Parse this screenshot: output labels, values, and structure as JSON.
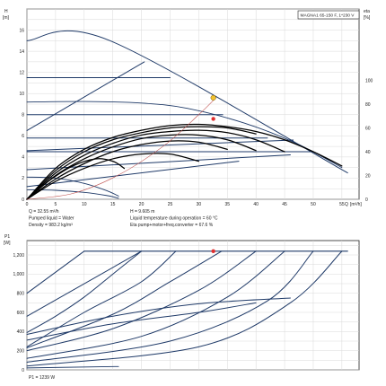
{
  "colors": {
    "grid": "#d9d9d9",
    "axis": "#222222",
    "blue": "#1f3a68",
    "black": "#000000",
    "system": "#c0504d",
    "op_marker": "#e03030",
    "head_marker": "#f2c230",
    "label_box": "#222222"
  },
  "chart_data": [
    {
      "type": "line",
      "chart_id": "head",
      "title": "MAGNA1 65-150 F, 1*230 V",
      "y_axis_label": "H",
      "y_axis_unit": "[m]",
      "y2_axis_label": "eta",
      "y2_axis_unit": "[%]",
      "x_axis_label": "Q",
      "x_axis_unit": "[m³/h]",
      "xlim": [
        0,
        58
      ],
      "ylim": [
        0,
        18
      ],
      "y2lim": [
        0,
        160
      ],
      "x_ticks": [
        0,
        5,
        10,
        15,
        20,
        25,
        30,
        35,
        40,
        45,
        50,
        55
      ],
      "y_ticks": [
        0,
        2,
        4,
        6,
        8,
        10,
        12,
        14,
        16
      ],
      "y2_ticks": [
        0,
        20,
        40,
        60,
        80,
        100
      ],
      "grid": true,
      "series": [
        {
          "group": "max",
          "points": [
            [
              0,
              15
            ],
            [
              14.5,
              15
            ],
            [
              56,
              2.5
            ]
          ]
        },
        {
          "group": "proportional",
          "points": [
            [
              0,
              6.5
            ],
            [
              20.5,
              13
            ]
          ]
        },
        {
          "group": "proportional",
          "points": [
            [
              0,
              4.6
            ],
            [
              46.5,
              5.6
            ]
          ]
        },
        {
          "group": "proportional",
          "points": [
            [
              0,
              2.8
            ],
            [
              46,
              4.2
            ]
          ]
        },
        {
          "group": "proportional",
          "points": [
            [
              0,
              1.2
            ],
            [
              37,
              3.6
            ]
          ]
        },
        {
          "group": "constant",
          "points": [
            [
              0,
              11.5
            ],
            [
              25,
              11.5
            ]
          ]
        },
        {
          "group": "constant",
          "points": [
            [
              0,
              8
            ],
            [
              34.2,
              8
            ]
          ]
        },
        {
          "group": "constant",
          "points": [
            [
              0,
              5.8
            ],
            [
              42,
              5.8
            ]
          ]
        },
        {
          "group": "constant",
          "points": [
            [
              0,
              4.5
            ],
            [
              50,
              4.5
            ]
          ]
        },
        {
          "group": "fixed",
          "points": [
            [
              0,
              0.9
            ],
            [
              5,
              0.85
            ],
            [
              10,
              0.65
            ],
            [
              14,
              0.35
            ],
            [
              16,
              0.1
            ]
          ]
        },
        {
          "group": "fixed",
          "points": [
            [
              0,
              2.1
            ],
            [
              5,
              2
            ],
            [
              10,
              1.5
            ],
            [
              14,
              0.8
            ],
            [
              16,
              0.3
            ]
          ]
        },
        {
          "group": "fixed",
          "points": [
            [
              0,
              9.2
            ],
            [
              10,
              9.25
            ],
            [
              20,
              9.1
            ],
            [
              28,
              8.6
            ],
            [
              38,
              7.2
            ],
            [
              47,
              5.3
            ],
            [
              55,
              3
            ]
          ]
        },
        {
          "group": "efficiency",
          "y_axis": "y2",
          "points": [
            [
              0,
              0
            ],
            [
              5,
              26
            ],
            [
              10,
              42
            ],
            [
              15,
              52
            ],
            [
              20,
              58
            ],
            [
              25,
              62
            ],
            [
              30,
              63
            ],
            [
              35,
              61
            ],
            [
              40,
              57
            ],
            [
              45,
              50
            ],
            [
              50,
              40
            ],
            [
              55,
              28
            ]
          ]
        },
        {
          "group": "efficiency",
          "y_axis": "y2",
          "points": [
            [
              0,
              0
            ],
            [
              5,
              24
            ],
            [
              10,
              40
            ],
            [
              15,
              50
            ],
            [
              20,
              56
            ],
            [
              25,
              60
            ],
            [
              30,
              61
            ],
            [
              35,
              60
            ],
            [
              40,
              55
            ]
          ]
        },
        {
          "group": "efficiency",
          "y_axis": "y2",
          "points": [
            [
              0,
              0
            ],
            [
              5,
              22
            ],
            [
              10,
              37
            ],
            [
              15,
              47
            ],
            [
              20,
              54
            ],
            [
              25,
              57
            ],
            [
              30,
              58
            ],
            [
              35,
              56
            ],
            [
              40,
              50
            ],
            [
              45,
              40
            ]
          ]
        },
        {
          "group": "efficiency",
          "y_axis": "y2",
          "points": [
            [
              0,
              0
            ],
            [
              5,
              20
            ],
            [
              10,
              34
            ],
            [
              15,
              44
            ],
            [
              20,
              51
            ],
            [
              25,
              54
            ],
            [
              30,
              54
            ],
            [
              35,
              50
            ],
            [
              40,
              41
            ]
          ]
        },
        {
          "group": "efficiency",
          "y_axis": "y2",
          "points": [
            [
              0,
              0
            ],
            [
              5,
              17
            ],
            [
              10,
              30
            ],
            [
              15,
              40
            ],
            [
              20,
              46
            ],
            [
              25,
              49
            ],
            [
              30,
              48
            ],
            [
              35,
              42
            ]
          ]
        },
        {
          "group": "efficiency",
          "y_axis": "y2",
          "points": [
            [
              0,
              0
            ],
            [
              5,
              15
            ],
            [
              10,
              26
            ],
            [
              15,
              34
            ],
            [
              20,
              38
            ],
            [
              25,
              38
            ],
            [
              30,
              32
            ]
          ]
        },
        {
          "group": "efficiency",
          "y_axis": "y2",
          "points": [
            [
              0,
              0
            ],
            [
              4,
              16
            ],
            [
              8,
              28
            ],
            [
              12,
              34
            ],
            [
              15,
              32
            ],
            [
              17,
              26
            ]
          ]
        },
        {
          "group": "system",
          "points": [
            [
              0,
              0
            ],
            [
              8,
              0.55
            ],
            [
              16,
              2.3
            ],
            [
              24,
              5.1
            ],
            [
              30,
              8
            ],
            [
              33,
              9.6
            ]
          ]
        }
      ],
      "markers": [
        {
          "name": "head-operating-point",
          "x": 32.55,
          "y": 9.605,
          "color_key": "head_marker"
        },
        {
          "name": "eta-operating-point",
          "x": 32.55,
          "y2": 67.6,
          "color_key": "op_marker"
        }
      ]
    },
    {
      "type": "line",
      "chart_id": "power",
      "y_axis_label": "P1",
      "y_axis_unit": "[W]",
      "xlim": [
        0,
        58
      ],
      "ylim": [
        0,
        1350
      ],
      "y_ticks": [
        0,
        200,
        400,
        600,
        800,
        1000,
        1200
      ],
      "y_tick_labels": [
        "0",
        "200",
        "400",
        "600",
        "800",
        "1,000",
        "1,200"
      ],
      "grid": true,
      "series": [
        {
          "group": "max",
          "points": [
            [
              10,
              1239
            ],
            [
              56,
              1239
            ]
          ]
        },
        {
          "group": "rising",
          "points": [
            [
              0,
              800
            ],
            [
              10,
              1239
            ]
          ]
        },
        {
          "group": "rising",
          "points": [
            [
              0,
              560
            ],
            [
              20,
              1239
            ]
          ]
        },
        {
          "group": "rising",
          "points": [
            [
              0,
              390
            ],
            [
              5,
              560
            ],
            [
              10,
              760
            ],
            [
              15,
              1000
            ],
            [
              20,
              1239
            ]
          ]
        },
        {
          "group": "rising",
          "points": [
            [
              0,
              240
            ],
            [
              10,
              600
            ],
            [
              20,
              920
            ],
            [
              26,
              1239
            ]
          ]
        },
        {
          "group": "rising",
          "points": [
            [
              0,
              230
            ],
            [
              15,
              580
            ],
            [
              25,
              920
            ],
            [
              34,
              1239
            ]
          ]
        },
        {
          "group": "rising",
          "points": [
            [
              0,
              200
            ],
            [
              15,
              430
            ],
            [
              30,
              830
            ],
            [
              40,
              1239
            ]
          ]
        },
        {
          "group": "rising",
          "points": [
            [
              0,
              120
            ],
            [
              20,
              350
            ],
            [
              35,
              760
            ],
            [
              45,
              1239
            ]
          ]
        },
        {
          "group": "rising",
          "points": [
            [
              0,
              80
            ],
            [
              25,
              300
            ],
            [
              42,
              720
            ],
            [
              50,
              1239
            ]
          ]
        },
        {
          "group": "rising",
          "points": [
            [
              0,
              40
            ],
            [
              30,
              240
            ],
            [
              46,
              700
            ],
            [
              55,
              1239
            ]
          ]
        },
        {
          "group": "partial",
          "points": [
            [
              0,
              310
            ],
            [
              15,
              480
            ],
            [
              30,
              600
            ],
            [
              40,
              700
            ]
          ]
        },
        {
          "group": "partial",
          "points": [
            [
              0,
              370
            ],
            [
              15,
              560
            ],
            [
              30,
              690
            ],
            [
              46,
              750
            ]
          ]
        },
        {
          "group": "fixed",
          "points": [
            [
              0,
              20
            ],
            [
              16,
              35
            ]
          ]
        }
      ],
      "markers": [
        {
          "name": "power-operating-point",
          "x": 32.55,
          "y": 1239,
          "color_key": "op_marker"
        }
      ]
    }
  ],
  "info": {
    "flow": "Q = 32.55 m³/h",
    "liquid": "Pumped liquid = Water",
    "density": "Density = 983.2 kg/m³",
    "head": "H = 9.605 m",
    "temp": "Liquid temperature during operation = 60 °C",
    "eta": "Eta pump+motor+freq.converter = 67.6 %",
    "p1": "P1 = 1239 W"
  }
}
